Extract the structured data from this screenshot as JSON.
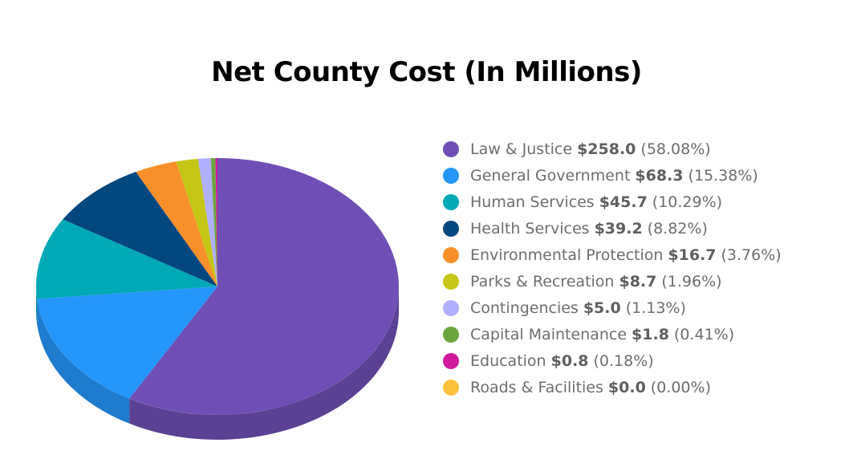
{
  "chart_data": {
    "type": "pie",
    "title": "Net County Cost (In Millions)",
    "legend_position": "right",
    "slices": [
      {
        "label": "Law & Justice",
        "value_label": "$258.0",
        "percent_label": "(58.08%)",
        "value": 258.0,
        "percent": 58.08,
        "color": "#6f4fb5"
      },
      {
        "label": "General Government",
        "value_label": "$68.3",
        "percent_label": "(15.38%)",
        "value": 68.3,
        "percent": 15.38,
        "color": "#2596fa"
      },
      {
        "label": "Human Services",
        "value_label": "$45.7",
        "percent_label": "(10.29%)",
        "value": 45.7,
        "percent": 10.29,
        "color": "#00a9b5"
      },
      {
        "label": "Health Services",
        "value_label": "$39.2",
        "percent_label": "(8.82%)",
        "value": 39.2,
        "percent": 8.82,
        "color": "#03477f"
      },
      {
        "label": "Environmental Protection",
        "value_label": "$16.7",
        "percent_label": "(3.76%)",
        "value": 16.7,
        "percent": 3.76,
        "color": "#f78f2a"
      },
      {
        "label": "Parks & Recreation",
        "value_label": "$8.7",
        "percent_label": "(1.96%)",
        "value": 8.7,
        "percent": 1.96,
        "color": "#c5c615"
      },
      {
        "label": "Contingencies",
        "value_label": "$5.0",
        "percent_label": "(1.13%)",
        "value": 5.0,
        "percent": 1.13,
        "color": "#b0b0ff"
      },
      {
        "label": "Capital Maintenance",
        "value_label": "$1.8",
        "percent_label": "(0.41%)",
        "value": 1.8,
        "percent": 0.41,
        "color": "#6aa53e"
      },
      {
        "label": "Education",
        "value_label": "$0.8",
        "percent_label": "(0.18%)",
        "value": 0.8,
        "percent": 0.18,
        "color": "#d11a9b"
      },
      {
        "label": "Roads & Facilities",
        "value_label": "$0.0",
        "percent_label": "(0.00%)",
        "value": 0.0,
        "percent": 0.0,
        "color": "#fcc23c"
      }
    ]
  }
}
